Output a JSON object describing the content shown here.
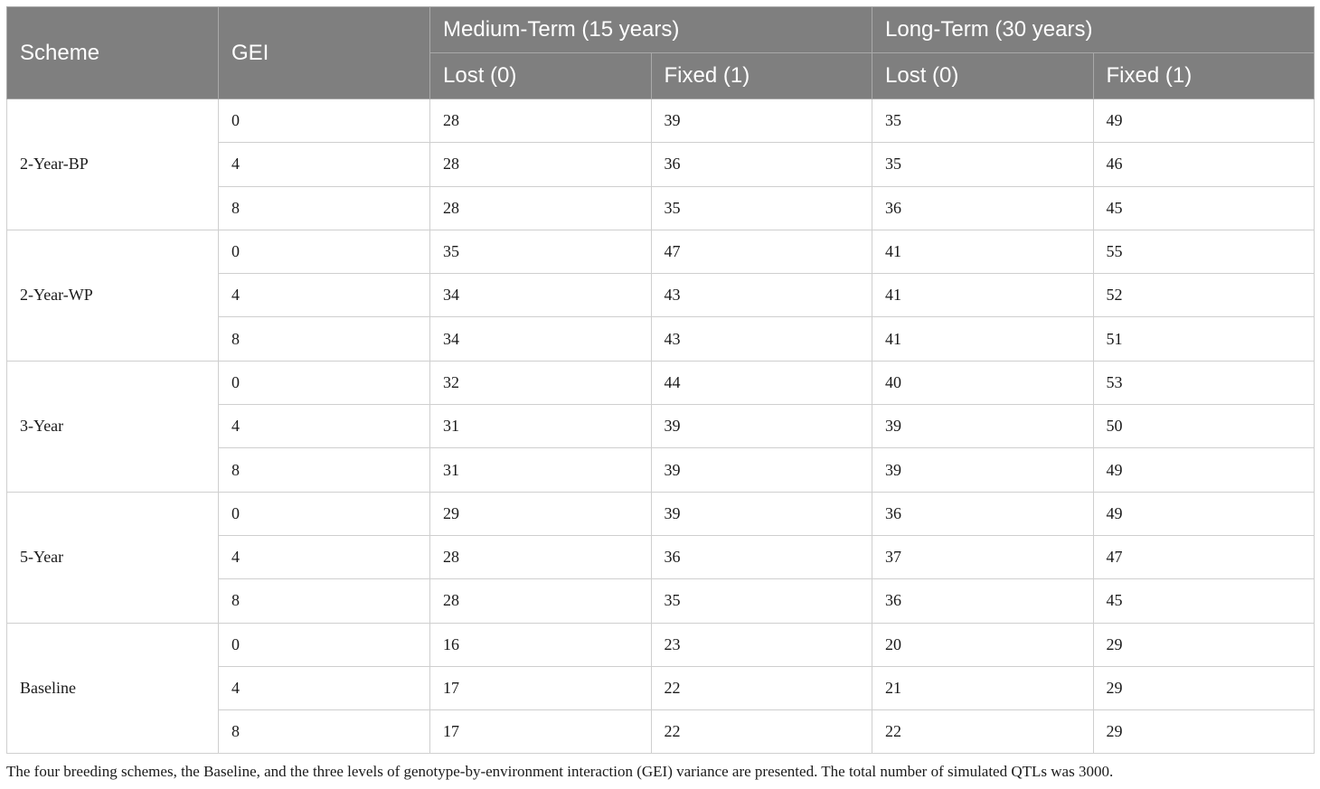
{
  "header": {
    "scheme": "Scheme",
    "gei": "GEI",
    "medium": "Medium-Term (15 years)",
    "long": "Long-Term (30 years)",
    "lost": "Lost (0)",
    "fixed": "Fixed (1)"
  },
  "groups": [
    {
      "scheme": "2-Year-BP",
      "rows": [
        {
          "gei": "0",
          "m_lost": "28",
          "m_fixed": "39",
          "l_lost": "35",
          "l_fixed": "49"
        },
        {
          "gei": "4",
          "m_lost": "28",
          "m_fixed": "36",
          "l_lost": "35",
          "l_fixed": "46"
        },
        {
          "gei": "8",
          "m_lost": "28",
          "m_fixed": "35",
          "l_lost": "36",
          "l_fixed": "45"
        }
      ]
    },
    {
      "scheme": "2-Year-WP",
      "rows": [
        {
          "gei": "0",
          "m_lost": "35",
          "m_fixed": "47",
          "l_lost": "41",
          "l_fixed": "55"
        },
        {
          "gei": "4",
          "m_lost": "34",
          "m_fixed": "43",
          "l_lost": "41",
          "l_fixed": "52"
        },
        {
          "gei": "8",
          "m_lost": "34",
          "m_fixed": "43",
          "l_lost": "41",
          "l_fixed": "51"
        }
      ]
    },
    {
      "scheme": "3-Year",
      "rows": [
        {
          "gei": "0",
          "m_lost": "32",
          "m_fixed": "44",
          "l_lost": "40",
          "l_fixed": "53"
        },
        {
          "gei": "4",
          "m_lost": "31",
          "m_fixed": "39",
          "l_lost": "39",
          "l_fixed": "50"
        },
        {
          "gei": "8",
          "m_lost": "31",
          "m_fixed": "39",
          "l_lost": "39",
          "l_fixed": "49"
        }
      ]
    },
    {
      "scheme": "5-Year",
      "rows": [
        {
          "gei": "0",
          "m_lost": "29",
          "m_fixed": "39",
          "l_lost": "36",
          "l_fixed": "49"
        },
        {
          "gei": "4",
          "m_lost": "28",
          "m_fixed": "36",
          "l_lost": "37",
          "l_fixed": "47"
        },
        {
          "gei": "8",
          "m_lost": "28",
          "m_fixed": "35",
          "l_lost": "36",
          "l_fixed": "45"
        }
      ]
    },
    {
      "scheme": "Baseline",
      "rows": [
        {
          "gei": "0",
          "m_lost": "16",
          "m_fixed": "23",
          "l_lost": "20",
          "l_fixed": "29"
        },
        {
          "gei": "4",
          "m_lost": "17",
          "m_fixed": "22",
          "l_lost": "21",
          "l_fixed": "29"
        },
        {
          "gei": "8",
          "m_lost": "17",
          "m_fixed": "22",
          "l_lost": "22",
          "l_fixed": "29"
        }
      ]
    }
  ],
  "caption": "The four breeding schemes, the Baseline, and the three levels of genotype-by-environment interaction (GEI) variance are presented. The total number of simulated QTLs was 3000."
}
